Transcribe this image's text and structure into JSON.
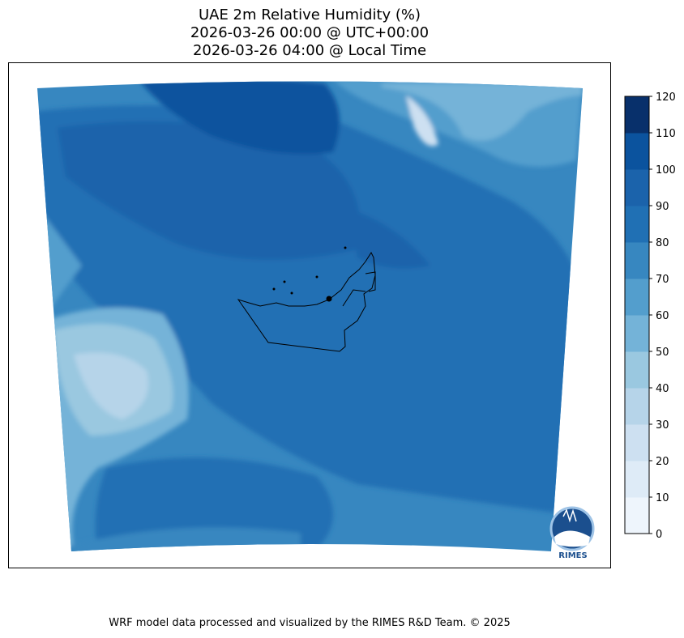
{
  "title": {
    "line1": "UAE 2m Relative Humidity (%)",
    "line2": "2026-03-26 00:00 @ UTC+00:00",
    "line3": "2026-03-26 04:00 @ Local Time"
  },
  "chart_data": {
    "type": "heatmap",
    "variable": "2m Relative Humidity",
    "units": "%",
    "colorbar": {
      "levels": [
        0,
        10,
        20,
        30,
        40,
        50,
        60,
        70,
        80,
        90,
        100,
        110,
        120
      ],
      "tick_labels": [
        "0",
        "10",
        "20",
        "30",
        "40",
        "50",
        "60",
        "70",
        "80",
        "90",
        "100",
        "110",
        "120"
      ],
      "colors": [
        "#eef5fc",
        "#deebf7",
        "#cde0f1",
        "#b6d4e9",
        "#9ac8e0",
        "#74b3d8",
        "#539ecd",
        "#3787c0",
        "#2070b4",
        "#1b63ab",
        "#0b539e",
        "#08306b"
      ]
    },
    "field_summary": "Mostly 70-100% over Gulf and eastern areas; 20-60% over western desert and northern mountains"
  },
  "logo": {
    "text": "RIMES"
  },
  "footer": "WRF model data processed and visualized by the RIMES R&D Team. © 2025"
}
